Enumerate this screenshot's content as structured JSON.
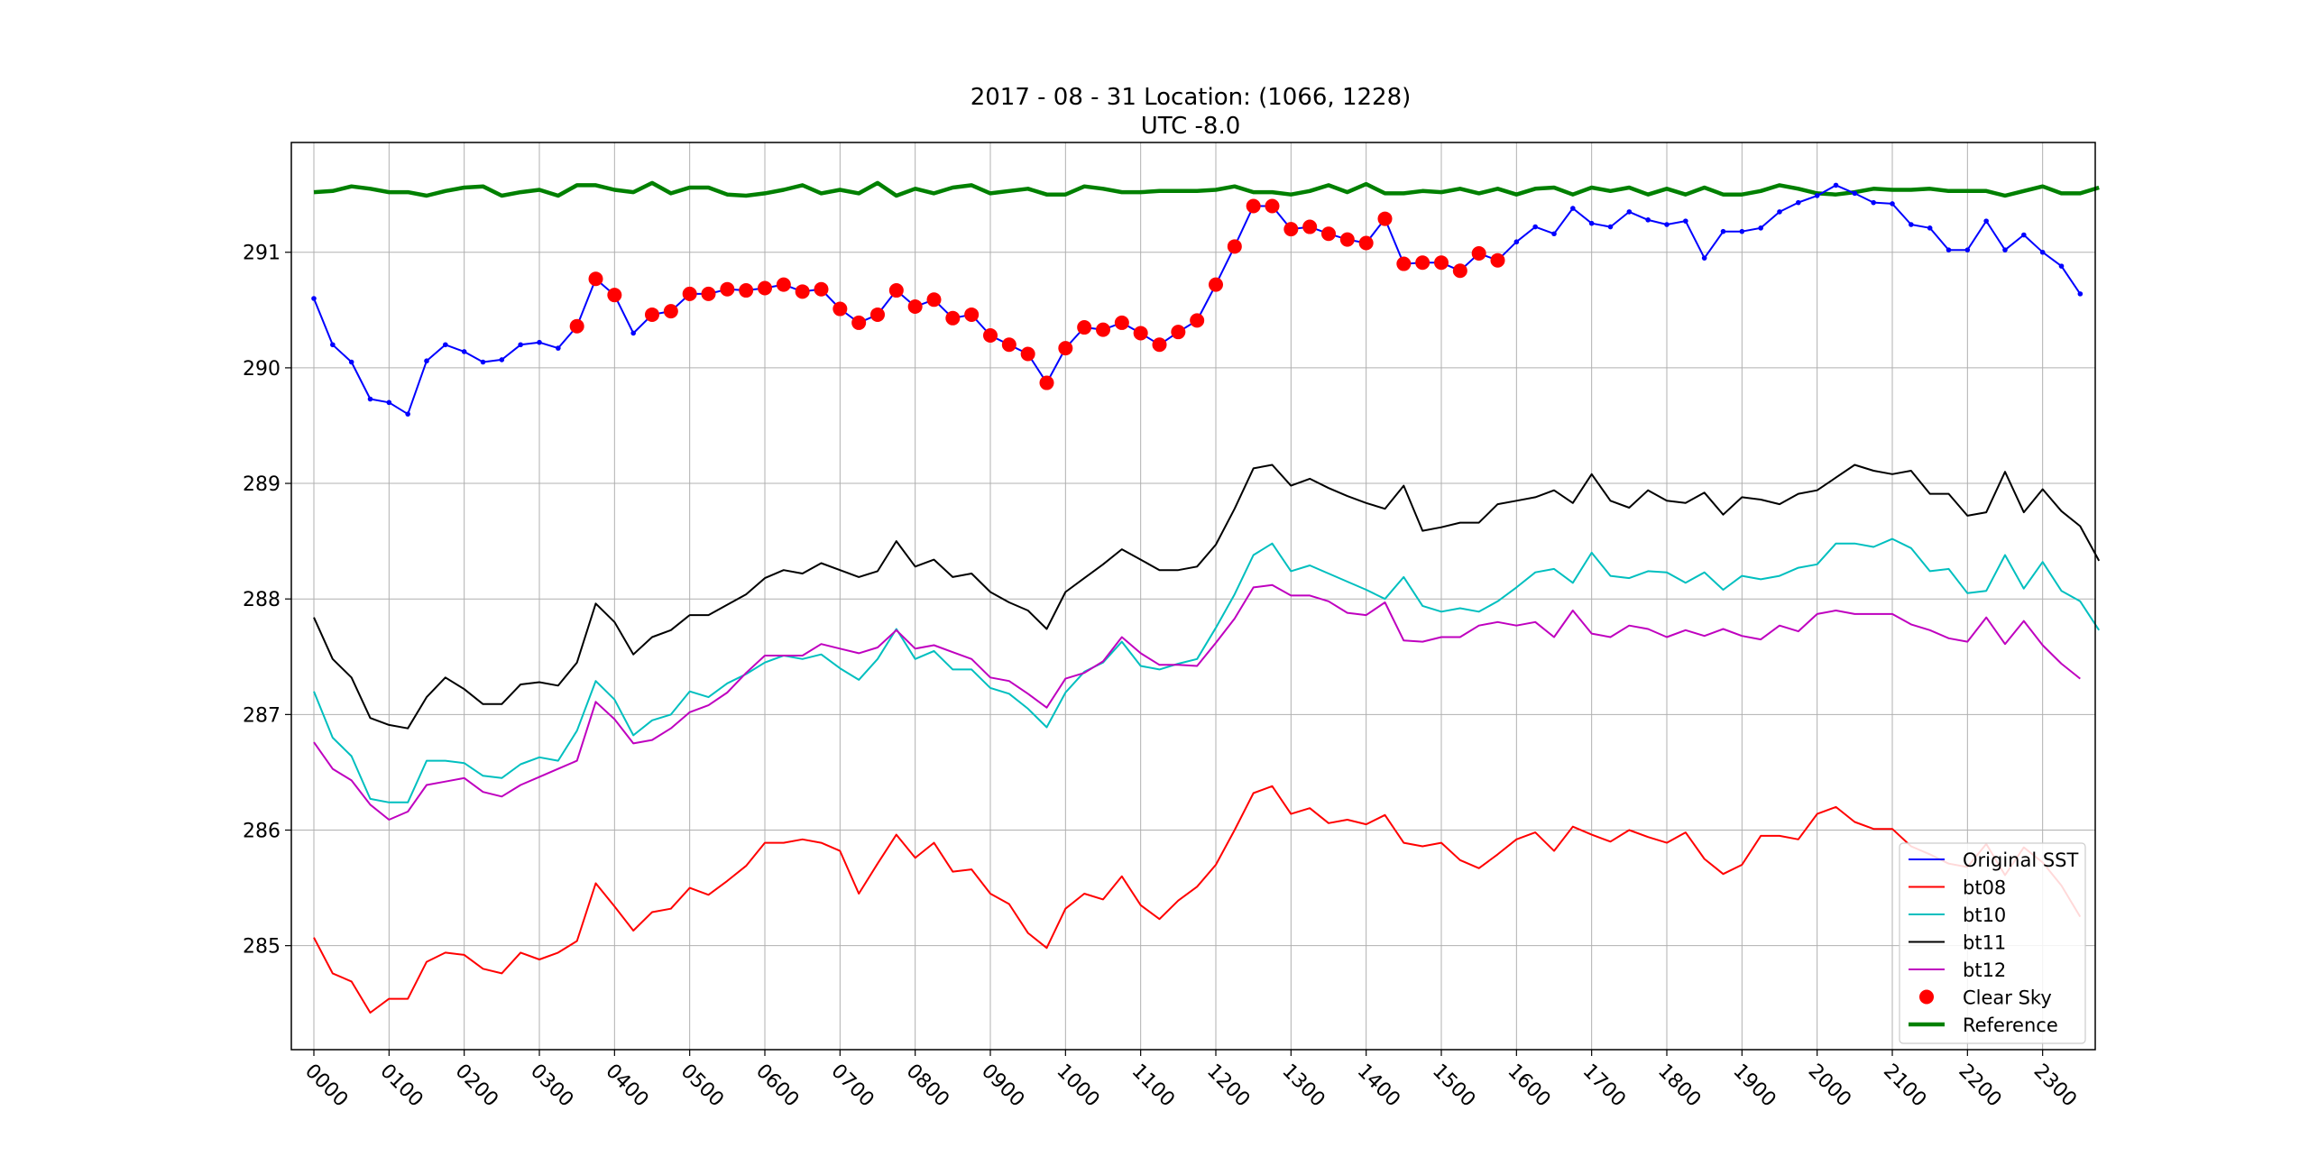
{
  "chart_data": {
    "type": "line",
    "title": "2017 - 08 - 31   Location: (1066, 1228)",
    "subtitle": "UTC -8.0",
    "xlabel": "",
    "ylabel": "",
    "xlim": [
      -0.3,
      23.7
    ],
    "ylim": [
      284.1,
      291.95
    ],
    "grid": true,
    "legend_position": "lower-right",
    "x_tick_labels": [
      "0000",
      "0100",
      "0200",
      "0300",
      "0400",
      "0500",
      "0600",
      "0700",
      "0800",
      "0900",
      "1000",
      "1100",
      "1200",
      "1300",
      "1400",
      "1500",
      "1600",
      "1700",
      "1800",
      "1900",
      "2000",
      "2100",
      "2200",
      "2300"
    ],
    "y_tick_labels": [
      "285",
      "286",
      "287",
      "288",
      "289",
      "290",
      "291"
    ],
    "series": [
      {
        "name": "Original SST",
        "color": "#0000ff",
        "style": "line-dot",
        "x_start": 0.0,
        "x_step": 0.25,
        "values": [
          290.6,
          290.2,
          290.05,
          289.73,
          289.7,
          289.6,
          290.06,
          290.2,
          290.14,
          290.05,
          290.07,
          290.2,
          290.22,
          290.17,
          290.36,
          290.77,
          290.63,
          290.3,
          290.46,
          290.49,
          290.64,
          290.64,
          290.68,
          290.67,
          290.69,
          290.72,
          290.66,
          290.68,
          290.51,
          290.39,
          290.46,
          290.67,
          290.53,
          290.59,
          290.43,
          290.46,
          290.28,
          290.2,
          290.12,
          289.87,
          290.17,
          290.35,
          290.33,
          290.39,
          290.3,
          290.2,
          290.31,
          290.41,
          290.72,
          291.05,
          291.4,
          291.4,
          291.2,
          291.22,
          291.16,
          291.11,
          291.08,
          291.29,
          290.9,
          290.91,
          290.91,
          290.84,
          290.99,
          290.93,
          291.09,
          291.22,
          291.16,
          291.38,
          291.25,
          291.22,
          291.35,
          291.28,
          291.24,
          291.27,
          290.95,
          291.18,
          291.18,
          291.21,
          291.35,
          291.43,
          291.49,
          291.58,
          291.51,
          291.43,
          291.42,
          291.24,
          291.21,
          291.02,
          291.02,
          291.27,
          291.02,
          291.15,
          291.0,
          290.88,
          290.64
        ]
      },
      {
        "name": "bt08",
        "color": "#ff0000",
        "style": "line",
        "x_start": 0.0,
        "x_step": 0.25,
        "values": [
          285.07,
          284.76,
          284.69,
          284.42,
          284.54,
          284.54,
          284.86,
          284.94,
          284.92,
          284.8,
          284.76,
          284.94,
          284.88,
          284.94,
          285.04,
          285.54,
          285.34,
          285.13,
          285.29,
          285.32,
          285.5,
          285.44,
          285.56,
          285.69,
          285.89,
          285.89,
          285.92,
          285.89,
          285.82,
          285.45,
          285.71,
          285.96,
          285.76,
          285.89,
          285.64,
          285.66,
          285.45,
          285.36,
          285.11,
          284.98,
          285.32,
          285.45,
          285.4,
          285.6,
          285.35,
          285.23,
          285.39,
          285.51,
          285.7,
          286.0,
          286.32,
          286.38,
          286.14,
          286.19,
          286.06,
          286.09,
          286.05,
          286.13,
          285.89,
          285.86,
          285.89,
          285.74,
          285.67,
          285.79,
          285.92,
          285.98,
          285.82,
          286.03,
          285.96,
          285.9,
          286.0,
          285.94,
          285.89,
          285.98,
          285.75,
          285.62,
          285.7,
          285.95,
          285.95,
          285.92,
          286.14,
          286.2,
          286.07,
          286.01,
          286.01,
          285.86,
          285.79,
          285.71,
          285.68,
          285.88,
          285.61,
          285.85,
          285.72,
          285.52,
          285.25
        ]
      },
      {
        "name": "bt10",
        "color": "#00bfbf",
        "style": "line",
        "x_start": 0.0,
        "x_step": 0.25,
        "values": [
          287.2,
          286.8,
          286.64,
          286.27,
          286.24,
          286.24,
          286.6,
          286.6,
          286.58,
          286.47,
          286.45,
          286.57,
          286.63,
          286.6,
          286.86,
          287.29,
          287.13,
          286.82,
          286.95,
          287.0,
          287.2,
          287.15,
          287.27,
          287.35,
          287.45,
          287.51,
          287.48,
          287.52,
          287.4,
          287.3,
          287.48,
          287.74,
          287.48,
          287.55,
          287.39,
          287.39,
          287.23,
          287.18,
          287.05,
          286.89,
          287.19,
          287.37,
          287.45,
          287.63,
          287.42,
          287.39,
          287.44,
          287.48,
          287.75,
          288.04,
          288.38,
          288.48,
          288.24,
          288.29,
          288.22,
          288.15,
          288.08,
          288.0,
          288.19,
          287.94,
          287.89,
          287.92,
          287.89,
          287.98,
          288.1,
          288.23,
          288.26,
          288.14,
          288.4,
          288.2,
          288.18,
          288.24,
          288.23,
          288.14,
          288.23,
          288.08,
          288.2,
          288.17,
          288.2,
          288.27,
          288.3,
          288.48,
          288.48,
          288.45,
          288.52,
          288.44,
          288.24,
          288.26,
          288.05,
          288.07,
          288.38,
          288.09,
          288.32,
          288.07,
          287.98,
          287.73
        ]
      },
      {
        "name": "bt11",
        "color": "#000000",
        "style": "line",
        "x_start": 0.0,
        "x_step": 0.25,
        "values": [
          287.84,
          287.48,
          287.32,
          286.97,
          286.91,
          286.88,
          287.15,
          287.32,
          287.22,
          287.09,
          287.09,
          287.26,
          287.28,
          287.25,
          287.45,
          287.96,
          287.8,
          287.52,
          287.67,
          287.73,
          287.86,
          287.86,
          287.95,
          288.04,
          288.18,
          288.25,
          288.22,
          288.31,
          288.25,
          288.19,
          288.24,
          288.5,
          288.28,
          288.34,
          288.19,
          288.22,
          288.06,
          287.97,
          287.9,
          287.74,
          288.06,
          288.18,
          288.3,
          288.43,
          288.34,
          288.25,
          288.25,
          288.28,
          288.47,
          288.78,
          289.13,
          289.16,
          288.98,
          289.04,
          288.96,
          288.89,
          288.83,
          288.78,
          288.98,
          288.59,
          288.62,
          288.66,
          288.66,
          288.82,
          288.85,
          288.88,
          288.94,
          288.83,
          289.08,
          288.85,
          288.79,
          288.94,
          288.85,
          288.83,
          288.92,
          288.73,
          288.88,
          288.86,
          288.82,
          288.91,
          288.94,
          289.05,
          289.16,
          289.11,
          289.08,
          289.11,
          288.91,
          288.91,
          288.72,
          288.75,
          289.1,
          288.75,
          288.95,
          288.76,
          288.63,
          288.33
        ]
      },
      {
        "name": "bt12",
        "color": "#bf00bf",
        "style": "line",
        "x_start": 0.0,
        "x_step": 0.25,
        "values": [
          286.76,
          286.53,
          286.43,
          286.22,
          286.09,
          286.16,
          286.39,
          286.42,
          286.45,
          286.33,
          286.29,
          286.39,
          286.46,
          286.53,
          286.6,
          287.11,
          286.96,
          286.75,
          286.78,
          286.88,
          287.02,
          287.08,
          287.19,
          287.36,
          287.51,
          287.51,
          287.51,
          287.61,
          287.57,
          287.53,
          287.58,
          287.73,
          287.57,
          287.6,
          287.54,
          287.48,
          287.32,
          287.29,
          287.18,
          287.06,
          287.31,
          287.36,
          287.46,
          287.67,
          287.53,
          287.43,
          287.43,
          287.42,
          287.62,
          287.83,
          288.1,
          288.12,
          288.03,
          288.03,
          287.98,
          287.88,
          287.86,
          287.97,
          287.64,
          287.63,
          287.67,
          287.67,
          287.77,
          287.8,
          287.77,
          287.8,
          287.67,
          287.9,
          287.7,
          287.67,
          287.77,
          287.74,
          287.67,
          287.73,
          287.68,
          287.74,
          287.68,
          287.65,
          287.77,
          287.72,
          287.87,
          287.9,
          287.87,
          287.87,
          287.87,
          287.78,
          287.73,
          287.66,
          287.63,
          287.84,
          287.61,
          287.81,
          287.6,
          287.44,
          287.31
        ]
      },
      {
        "name": "Clear Sky",
        "color": "#ff0000",
        "style": "markers",
        "x_start": 3.5,
        "x_step": 0.25,
        "values": [
          290.36,
          290.77,
          290.63,
          null,
          290.46,
          290.49,
          290.64,
          290.64,
          290.68,
          290.67,
          290.69,
          290.72,
          290.66,
          290.68,
          290.51,
          290.39,
          290.46,
          290.67,
          290.53,
          290.59,
          290.43,
          290.46,
          290.28,
          290.2,
          290.12,
          289.87,
          290.17,
          290.35,
          290.33,
          290.39,
          290.3,
          290.2,
          290.31,
          290.41,
          290.72,
          291.05,
          291.4,
          291.4,
          291.2,
          291.22,
          291.16,
          291.11,
          291.08,
          291.29,
          290.9,
          290.91,
          290.91,
          290.84,
          290.99,
          290.93
        ]
      },
      {
        "name": "Reference",
        "color": "#008000",
        "style": "thick-line",
        "x_start": 0.0,
        "x_step": 0.25,
        "values": [
          291.52,
          291.53,
          291.57,
          291.55,
          291.52,
          291.52,
          291.49,
          291.53,
          291.56,
          291.57,
          291.49,
          291.52,
          291.54,
          291.49,
          291.58,
          291.58,
          291.54,
          291.52,
          291.6,
          291.51,
          291.56,
          291.56,
          291.5,
          291.49,
          291.51,
          291.54,
          291.58,
          291.51,
          291.54,
          291.51,
          291.6,
          291.49,
          291.55,
          291.51,
          291.56,
          291.58,
          291.51,
          291.53,
          291.55,
          291.5,
          291.5,
          291.57,
          291.55,
          291.52,
          291.52,
          291.53,
          291.53,
          291.53,
          291.54,
          291.57,
          291.52,
          291.52,
          291.5,
          291.53,
          291.58,
          291.52,
          291.59,
          291.51,
          291.51,
          291.53,
          291.52,
          291.55,
          291.51,
          291.55,
          291.5,
          291.55,
          291.56,
          291.5,
          291.56,
          291.53,
          291.56,
          291.5,
          291.55,
          291.5,
          291.56,
          291.5,
          291.5,
          291.53,
          291.58,
          291.55,
          291.51,
          291.5,
          291.52,
          291.55,
          291.54,
          291.54,
          291.55,
          291.53,
          291.53,
          291.53,
          291.49,
          291.53,
          291.57,
          291.51,
          291.51,
          291.56
        ]
      }
    ]
  }
}
